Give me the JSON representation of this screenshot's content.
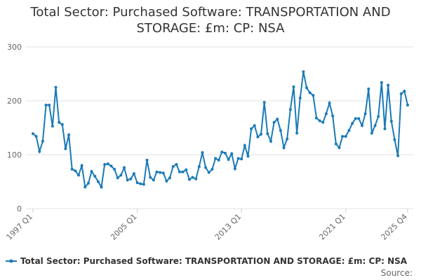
{
  "chart_data": {
    "type": "line",
    "title": "Total Sector: Purchased Software: TRANSPORTATION AND STORAGE: £m: CP: NSA",
    "source": "Source:",
    "categories": [
      "1997 Q1",
      null,
      null,
      null,
      null,
      null,
      null,
      null,
      null,
      null,
      null,
      null,
      null,
      null,
      null,
      null,
      null,
      null,
      null,
      null,
      null,
      null,
      null,
      null,
      null,
      null,
      null,
      null,
      null,
      null,
      null,
      null,
      "2005 Q1",
      null,
      null,
      null,
      null,
      null,
      null,
      null,
      null,
      null,
      null,
      null,
      null,
      null,
      null,
      null,
      null,
      null,
      null,
      null,
      null,
      null,
      null,
      null,
      null,
      null,
      null,
      null,
      null,
      null,
      null,
      null,
      "2013 Q1",
      null,
      null,
      null,
      null,
      null,
      null,
      null,
      null,
      null,
      null,
      null,
      null,
      null,
      null,
      null,
      null,
      null,
      null,
      null,
      null,
      null,
      null,
      null,
      null,
      null,
      null,
      null,
      null,
      null,
      null,
      null,
      "2021 Q1",
      null,
      null,
      null,
      null,
      null,
      null,
      null,
      null,
      null,
      null,
      null,
      null,
      null,
      null,
      null,
      null,
      null,
      null,
      "2025 Q4"
    ],
    "series": [
      {
        "name": "Total Sector: Purchased Software: TRANSPORTATION AND STORAGE: £m: CP: NSA",
        "color": "#1a7ab8",
        "values": [
          139,
          134,
          106,
          125,
          192,
          192,
          153,
          225,
          160,
          156,
          111,
          137,
          73,
          70,
          62,
          80,
          40,
          47,
          69,
          60,
          50,
          40,
          82,
          83,
          79,
          73,
          57,
          62,
          76,
          53,
          55,
          65,
          48,
          46,
          45,
          90,
          58,
          53,
          68,
          67,
          66,
          51,
          57,
          78,
          82,
          68,
          68,
          72,
          54,
          58,
          55,
          78,
          104,
          76,
          67,
          73,
          93,
          90,
          105,
          103,
          91,
          102,
          74,
          93,
          92,
          117,
          97,
          148,
          154,
          133,
          138,
          197,
          139,
          125,
          160,
          166,
          145,
          113,
          129,
          184,
          226,
          140,
          205,
          254,
          224,
          215,
          210,
          168,
          163,
          160,
          176,
          196,
          172,
          120,
          113,
          134,
          134,
          145,
          158,
          167,
          167,
          154,
          176,
          222,
          140,
          154,
          171,
          234,
          148,
          229,
          162,
          128,
          98,
          213,
          218,
          192
        ]
      }
    ],
    "ylim": [
      0,
      300
    ],
    "yticks": [
      0,
      100,
      200,
      300
    ],
    "grid": true
  }
}
